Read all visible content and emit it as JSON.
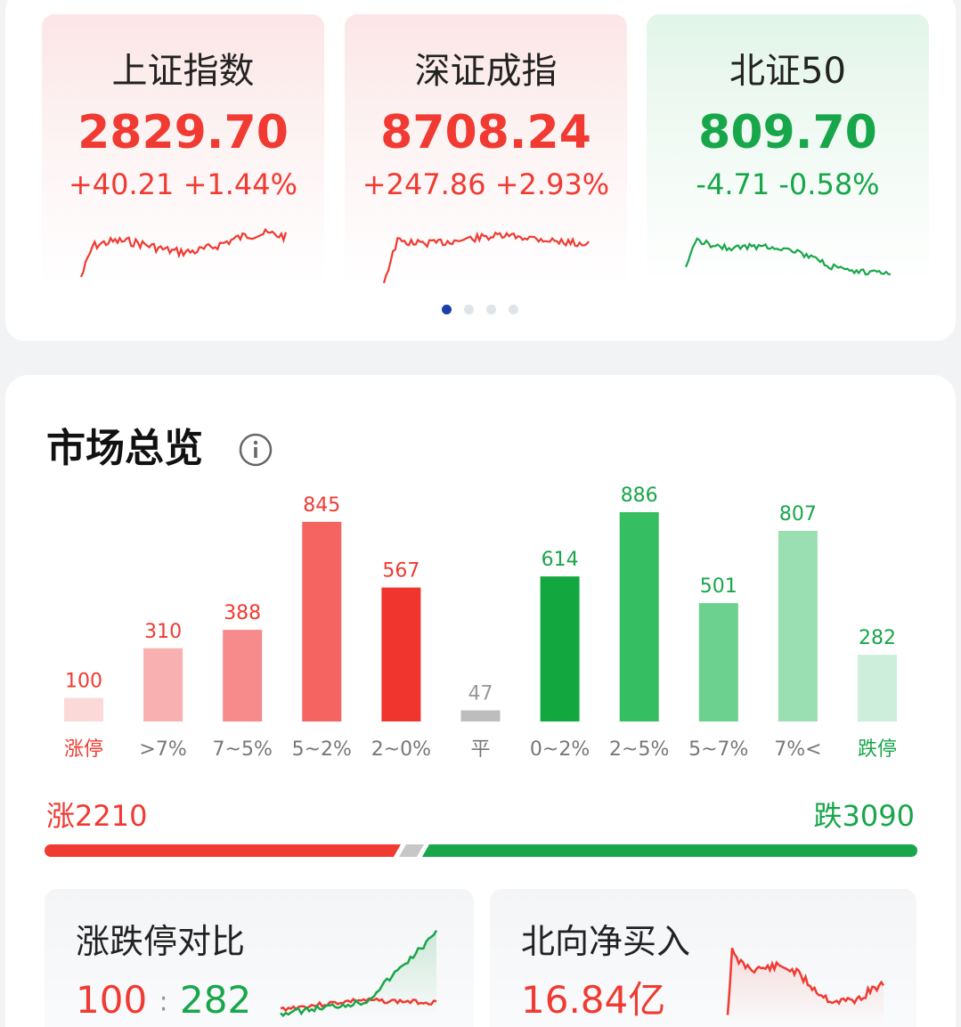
{
  "indices": [
    {
      "name": "上证指数",
      "value": "2829.70",
      "change": "+40.21 +1.44%",
      "trend": "up"
    },
    {
      "name": "深证成指",
      "value": "8708.24",
      "change": "+247.86 +2.93%",
      "trend": "up"
    },
    {
      "name": "北证50",
      "value": "809.70",
      "change": "-4.71 -0.58%",
      "trend": "down"
    }
  ],
  "pager": {
    "count": 4,
    "active": 0
  },
  "overview": {
    "title": "市场总览",
    "info_icon": "info-circle-icon"
  },
  "chart_data": {
    "type": "bar",
    "categories": [
      "涨停",
      ">7%",
      "7~5%",
      "5~2%",
      "2~0%",
      "平",
      "0~2%",
      "2~5%",
      "5~7%",
      "7%<",
      "跌停"
    ],
    "values": [
      100,
      310,
      388,
      845,
      567,
      47,
      614,
      886,
      501,
      807,
      282
    ],
    "bar_colors": [
      "#fbd9d9",
      "#f9b0b0",
      "#f78a8a",
      "#f56461",
      "#f0352f",
      "#bdbdbd",
      "#13a83f",
      "#35be62",
      "#6cd08f",
      "#99dfb1",
      "#cdeedb"
    ],
    "label_colors": [
      "#f03a32",
      "#f03a32",
      "#f03a32",
      "#f03a32",
      "#f03a32",
      "#999999",
      "#18a64a",
      "#18a64a",
      "#18a64a",
      "#18a64a",
      "#18a64a"
    ],
    "title": "",
    "xlabel": "",
    "ylabel": ""
  },
  "ratio": {
    "up_label": "涨2210",
    "down_label": "跌3090",
    "up": 2210,
    "down": 3090,
    "up_color": "#f03a32",
    "down_color": "#18a64a"
  },
  "limit_compare": {
    "title": "涨跌停对比",
    "up": "100",
    "sep": ":",
    "down": "282"
  },
  "northbound": {
    "title": "北向净买入",
    "value": "16.84亿"
  },
  "colors": {
    "red": "#f03a32",
    "green": "#18a64a",
    "bg": "#f2f3f5"
  }
}
